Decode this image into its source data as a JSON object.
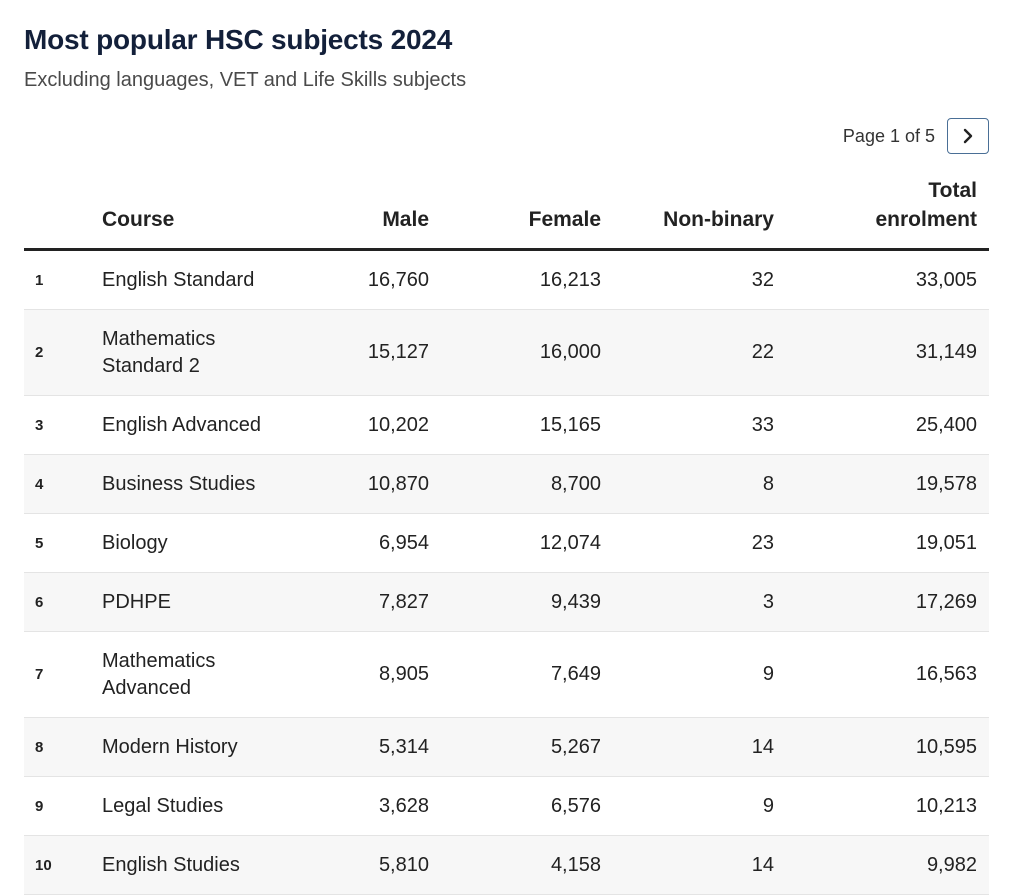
{
  "header": {
    "title": "Most popular HSC subjects 2024",
    "subtitle": "Excluding languages, VET and Life Skills subjects"
  },
  "pagination": {
    "label": "Page 1 of 5",
    "current_page": 1,
    "total_pages": 5,
    "next_icon": "chevron-right-icon"
  },
  "chart_data": {
    "type": "table",
    "columns": [
      "",
      "Course",
      "Male",
      "Female",
      "Non-binary",
      "Total enrolment"
    ],
    "rows": [
      {
        "rank": "1",
        "course": "English Standard",
        "male": "16,760",
        "female": "16,213",
        "nonbinary": "32",
        "total": "33,005"
      },
      {
        "rank": "2",
        "course": "Mathematics Standard 2",
        "male": "15,127",
        "female": "16,000",
        "nonbinary": "22",
        "total": "31,149"
      },
      {
        "rank": "3",
        "course": "English Advanced",
        "male": "10,202",
        "female": "15,165",
        "nonbinary": "33",
        "total": "25,400"
      },
      {
        "rank": "4",
        "course": "Business Studies",
        "male": "10,870",
        "female": "8,700",
        "nonbinary": "8",
        "total": "19,578"
      },
      {
        "rank": "5",
        "course": "Biology",
        "male": "6,954",
        "female": "12,074",
        "nonbinary": "23",
        "total": "19,051"
      },
      {
        "rank": "6",
        "course": "PDHPE",
        "male": "7,827",
        "female": "9,439",
        "nonbinary": "3",
        "total": "17,269"
      },
      {
        "rank": "7",
        "course": "Mathematics Advanced",
        "male": "8,905",
        "female": "7,649",
        "nonbinary": "9",
        "total": "16,563"
      },
      {
        "rank": "8",
        "course": "Modern History",
        "male": "5,314",
        "female": "5,267",
        "nonbinary": "14",
        "total": "10,595"
      },
      {
        "rank": "9",
        "course": "Legal Studies",
        "male": "3,628",
        "female": "6,576",
        "nonbinary": "9",
        "total": "10,213"
      },
      {
        "rank": "10",
        "course": "English Studies",
        "male": "5,810",
        "female": "4,158",
        "nonbinary": "14",
        "total": "9,982"
      }
    ]
  }
}
